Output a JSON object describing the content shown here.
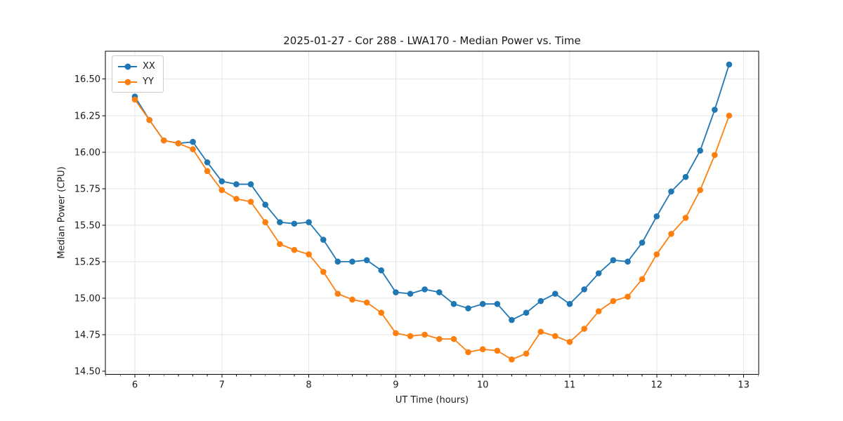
{
  "figure": {
    "background": "#ffffff"
  },
  "chart_data": {
    "type": "line",
    "title": "2025-01-27 - Cor 288 - LWA170 - Median Power vs. Time",
    "xlabel": "UT Time (hours)",
    "ylabel": "Median Power (CPU)",
    "xlim": [
      5.661,
      13.173
    ],
    "ylim": [
      14.478,
      16.691
    ],
    "xticks": [
      6,
      7,
      8,
      9,
      10,
      11,
      12,
      13
    ],
    "yticks": [
      14.5,
      14.75,
      15.0,
      15.25,
      15.5,
      15.75,
      16.0,
      16.25,
      16.5
    ],
    "x_minor_step_hours": 0.16667,
    "grid": true,
    "legend_position": "upper left",
    "x": [
      6.0,
      6.167,
      6.333,
      6.5,
      6.667,
      6.833,
      7.0,
      7.167,
      7.333,
      7.5,
      7.667,
      7.833,
      8.0,
      8.167,
      8.333,
      8.5,
      8.667,
      8.833,
      9.0,
      9.167,
      9.333,
      9.5,
      9.667,
      9.833,
      10.0,
      10.167,
      10.333,
      10.5,
      10.667,
      10.833,
      11.0,
      11.167,
      11.333,
      11.5,
      11.667,
      11.833,
      12.0,
      12.167,
      12.333,
      12.5,
      12.667,
      12.833
    ],
    "series": [
      {
        "name": "XX",
        "color": "#1f77b4",
        "values": [
          16.38,
          16.22,
          16.08,
          16.06,
          16.07,
          15.93,
          15.8,
          15.78,
          15.78,
          15.64,
          15.52,
          15.51,
          15.52,
          15.4,
          15.25,
          15.25,
          15.26,
          15.19,
          15.04,
          15.03,
          15.06,
          15.04,
          14.96,
          14.93,
          14.96,
          14.96,
          14.85,
          14.9,
          14.98,
          15.03,
          14.96,
          15.06,
          15.17,
          15.26,
          15.25,
          15.38,
          15.56,
          15.73,
          15.83,
          16.01,
          16.29,
          16.6
        ]
      },
      {
        "name": "YY",
        "color": "#ff7f0e",
        "values": [
          16.36,
          16.22,
          16.08,
          16.06,
          16.02,
          15.87,
          15.74,
          15.68,
          15.66,
          15.52,
          15.37,
          15.33,
          15.3,
          15.18,
          15.03,
          14.99,
          14.97,
          14.9,
          14.76,
          14.74,
          14.75,
          14.72,
          14.72,
          14.63,
          14.65,
          14.64,
          14.58,
          14.62,
          14.77,
          14.74,
          14.7,
          14.79,
          14.91,
          14.98,
          15.01,
          15.13,
          15.3,
          15.44,
          15.55,
          15.74,
          15.98,
          16.25
        ]
      }
    ]
  },
  "style": {
    "grid_color": "#e6e6e6",
    "spine_color": "#000000",
    "tick_color": "#000000",
    "text_color": "#1a1a1a"
  }
}
